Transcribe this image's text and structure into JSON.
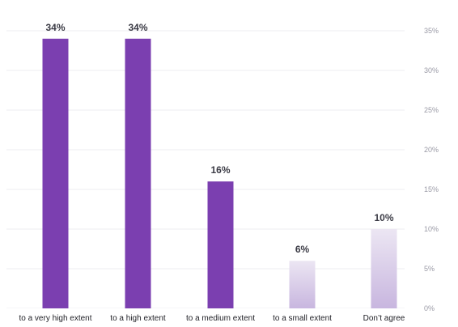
{
  "chart_data": {
    "type": "bar",
    "categories": [
      "to a very high extent",
      "to a  high extent",
      "to a medium extent",
      "to a small extent",
      "Don’t agree"
    ],
    "values": [
      34,
      34,
      16,
      6,
      10
    ],
    "data_labels": [
      "34%",
      "34%",
      "16%",
      "6%",
      "10%"
    ],
    "ylim": [
      0,
      35
    ],
    "yticks": [
      0,
      5,
      10,
      15,
      20,
      25,
      30,
      35
    ],
    "ytick_labels": [
      "0%",
      "5%",
      "10%",
      "15%",
      "20%",
      "25%",
      "30%",
      "35%"
    ],
    "yaxis_position": "right",
    "grid": true,
    "title": "",
    "xlabel": "",
    "ylabel": "",
    "colors": {
      "strong": "#7b3fb0",
      "light_top": "#ece6f3",
      "light_bottom": "#c8b6df"
    },
    "bar_styles": [
      "strong",
      "strong",
      "strong",
      "light",
      "light"
    ]
  }
}
